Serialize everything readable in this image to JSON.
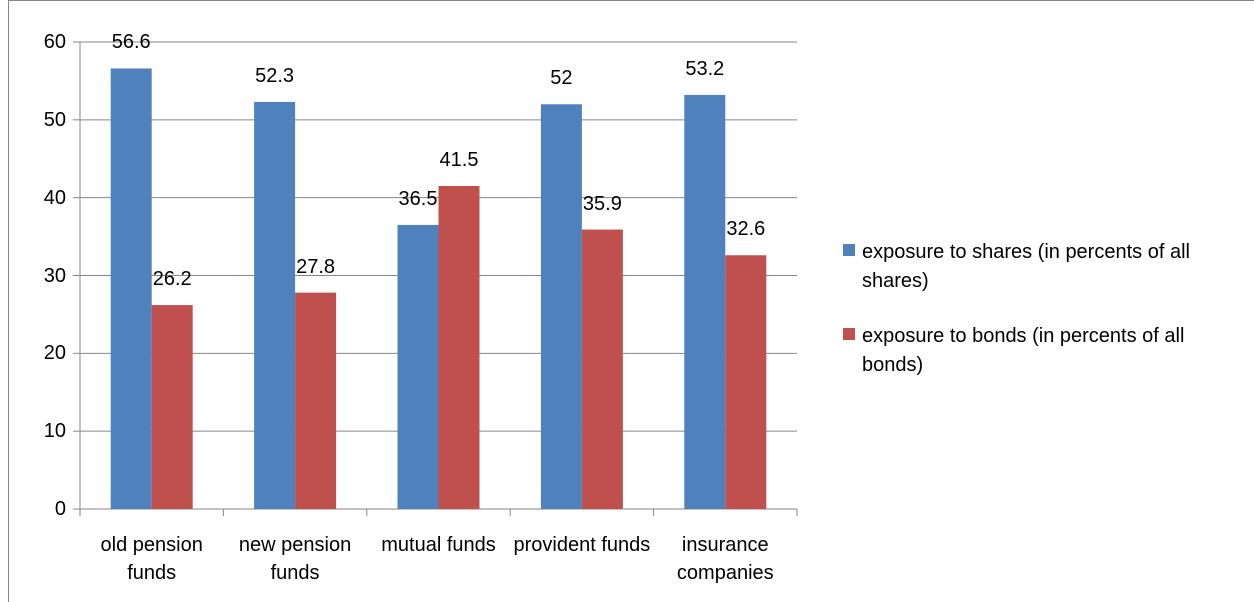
{
  "chart_data": {
    "type": "bar",
    "categories": [
      "old pension funds",
      "new pension funds",
      "mutual funds",
      "provident funds",
      "insurance companies"
    ],
    "series": [
      {
        "name": "exposure to shares (in percents of all shares)",
        "color": "#4f81bd",
        "values": [
          56.6,
          52.3,
          36.5,
          52,
          53.2
        ]
      },
      {
        "name": "exposure to bonds (in percents of all bonds)",
        "color": "#c0504d",
        "values": [
          26.2,
          27.8,
          41.5,
          35.9,
          32.6
        ]
      }
    ],
    "ylim": [
      0,
      60
    ],
    "yticks": [
      0,
      10,
      20,
      30,
      40,
      50,
      60
    ],
    "grid": true,
    "legend": "right"
  }
}
